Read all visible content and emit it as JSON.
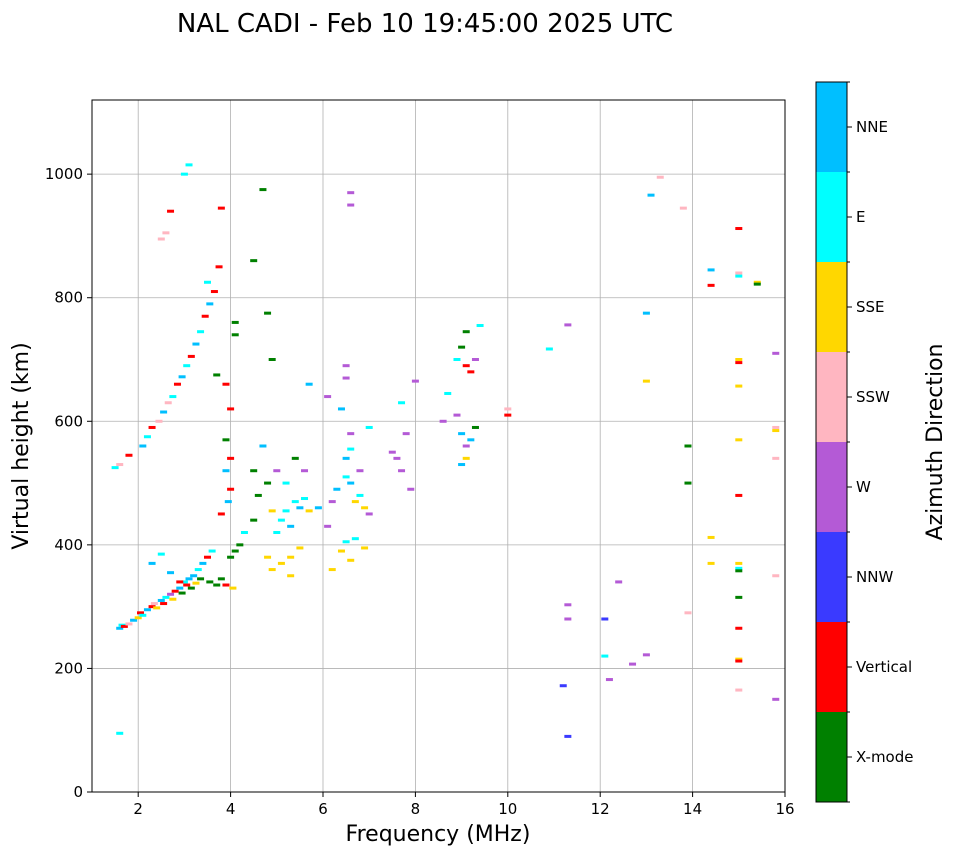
{
  "chart_data": {
    "type": "scatter",
    "title": "NAL CADI - Feb 10 19:45:00 2025 UTC",
    "xlabel": "Frequency (MHz)",
    "ylabel": "Virtual height (km)",
    "xlim": [
      1,
      16
    ],
    "ylim": [
      0,
      1120
    ],
    "xticks": [
      2,
      4,
      6,
      8,
      10,
      12,
      14,
      16
    ],
    "yticks": [
      0,
      200,
      400,
      600,
      800,
      1000
    ],
    "grid": true,
    "colorbar": {
      "title": "Azimuth Direction",
      "categories": [
        {
          "name": "X-mode",
          "color": "#008000"
        },
        {
          "name": "Vertical",
          "color": "#ff0000"
        },
        {
          "name": "NNW",
          "color": "#3a3aff"
        },
        {
          "name": "W",
          "color": "#b45ad6"
        },
        {
          "name": "SSW",
          "color": "#ffb6c1"
        },
        {
          "name": "SSE",
          "color": "#ffd700"
        },
        {
          "name": "E",
          "color": "#00ffff"
        },
        {
          "name": "NNE",
          "color": "#00bfff"
        }
      ]
    },
    "points": [
      [
        1.6,
        265,
        "NNE"
      ],
      [
        1.65,
        270,
        "E"
      ],
      [
        1.7,
        268,
        "Vertical"
      ],
      [
        1.8,
        272,
        "SSW"
      ],
      [
        1.9,
        278,
        "NNE"
      ],
      [
        2.0,
        282,
        "SSE"
      ],
      [
        2.05,
        290,
        "Vertical"
      ],
      [
        2.1,
        286,
        "E"
      ],
      [
        2.2,
        295,
        "NNE"
      ],
      [
        2.3,
        300,
        "Vertical"
      ],
      [
        2.35,
        305,
        "SSW"
      ],
      [
        2.4,
        298,
        "SSE"
      ],
      [
        2.5,
        310,
        "NNE"
      ],
      [
        2.55,
        305,
        "Vertical"
      ],
      [
        2.6,
        315,
        "E"
      ],
      [
        2.7,
        320,
        "W"
      ],
      [
        2.75,
        312,
        "SSE"
      ],
      [
        2.8,
        325,
        "Vertical"
      ],
      [
        2.9,
        330,
        "NNE"
      ],
      [
        2.95,
        322,
        "X-mode"
      ],
      [
        3.0,
        340,
        "E"
      ],
      [
        3.05,
        335,
        "Vertical"
      ],
      [
        3.1,
        345,
        "NNE"
      ],
      [
        3.15,
        330,
        "X-mode"
      ],
      [
        3.2,
        350,
        "NNE"
      ],
      [
        3.25,
        338,
        "SSE"
      ],
      [
        3.3,
        360,
        "E"
      ],
      [
        3.35,
        345,
        "X-mode"
      ],
      [
        3.4,
        370,
        "NNE"
      ],
      [
        3.5,
        380,
        "Vertical"
      ],
      [
        3.55,
        340,
        "X-mode"
      ],
      [
        3.6,
        390,
        "E"
      ],
      [
        3.7,
        335,
        "X-mode"
      ],
      [
        3.8,
        345,
        "X-mode"
      ],
      [
        3.9,
        335,
        "Vertical"
      ],
      [
        4.0,
        380,
        "X-mode"
      ],
      [
        4.05,
        330,
        "SSE"
      ],
      [
        4.1,
        390,
        "X-mode"
      ],
      [
        2.3,
        370,
        "NNE"
      ],
      [
        2.5,
        385,
        "E"
      ],
      [
        2.7,
        355,
        "NNE"
      ],
      [
        2.9,
        340,
        "Vertical"
      ],
      [
        1.5,
        525,
        "E"
      ],
      [
        1.6,
        530,
        "SSW"
      ],
      [
        1.8,
        545,
        "Vertical"
      ],
      [
        2.1,
        560,
        "NNE"
      ],
      [
        2.2,
        575,
        "E"
      ],
      [
        2.3,
        590,
        "Vertical"
      ],
      [
        2.45,
        600,
        "SSW"
      ],
      [
        2.55,
        615,
        "NNE"
      ],
      [
        2.65,
        630,
        "SSW"
      ],
      [
        2.75,
        640,
        "E"
      ],
      [
        2.85,
        660,
        "Vertical"
      ],
      [
        2.95,
        672,
        "NNE"
      ],
      [
        3.05,
        690,
        "E"
      ],
      [
        3.15,
        705,
        "Vertical"
      ],
      [
        3.25,
        725,
        "NNE"
      ],
      [
        3.35,
        745,
        "E"
      ],
      [
        3.45,
        770,
        "Vertical"
      ],
      [
        3.55,
        790,
        "NNE"
      ],
      [
        3.65,
        810,
        "Vertical"
      ],
      [
        3.5,
        825,
        "E"
      ],
      [
        2.7,
        940,
        "Vertical"
      ],
      [
        2.5,
        895,
        "SSW"
      ],
      [
        2.6,
        905,
        "SSW"
      ],
      [
        3.0,
        1000,
        "E"
      ],
      [
        3.1,
        1015,
        "E"
      ],
      [
        3.8,
        945,
        "Vertical"
      ],
      [
        3.75,
        850,
        "Vertical"
      ],
      [
        3.7,
        675,
        "X-mode"
      ],
      [
        3.9,
        660,
        "Vertical"
      ],
      [
        4.0,
        620,
        "Vertical"
      ],
      [
        4.1,
        740,
        "X-mode"
      ],
      [
        4.1,
        760,
        "X-mode"
      ],
      [
        4.5,
        860,
        "X-mode"
      ],
      [
        4.7,
        975,
        "X-mode"
      ],
      [
        4.8,
        775,
        "X-mode"
      ],
      [
        4.9,
        700,
        "X-mode"
      ],
      [
        3.9,
        570,
        "X-mode"
      ],
      [
        4.0,
        540,
        "Vertical"
      ],
      [
        3.9,
        520,
        "NNE"
      ],
      [
        4.0,
        490,
        "Vertical"
      ],
      [
        3.95,
        470,
        "NNE"
      ],
      [
        3.8,
        450,
        "Vertical"
      ],
      [
        4.2,
        400,
        "X-mode"
      ],
      [
        4.3,
        420,
        "E"
      ],
      [
        4.5,
        440,
        "X-mode"
      ],
      [
        4.5,
        520,
        "X-mode"
      ],
      [
        4.6,
        480,
        "X-mode"
      ],
      [
        4.7,
        560,
        "NNE"
      ],
      [
        4.8,
        500,
        "X-mode"
      ],
      [
        4.9,
        455,
        "SSE"
      ],
      [
        4.8,
        380,
        "SSE"
      ],
      [
        4.9,
        360,
        "SSE"
      ],
      [
        5.0,
        420,
        "E"
      ],
      [
        5.1,
        440,
        "E"
      ],
      [
        5.2,
        455,
        "E"
      ],
      [
        5.3,
        430,
        "NNE"
      ],
      [
        5.4,
        470,
        "E"
      ],
      [
        5.5,
        460,
        "NNE"
      ],
      [
        5.6,
        475,
        "E"
      ],
      [
        5.7,
        455,
        "SSE"
      ],
      [
        5.1,
        370,
        "SSE"
      ],
      [
        5.3,
        380,
        "SSE"
      ],
      [
        5.5,
        395,
        "SSE"
      ],
      [
        5.3,
        350,
        "SSE"
      ],
      [
        5.0,
        520,
        "W"
      ],
      [
        5.2,
        500,
        "E"
      ],
      [
        5.4,
        540,
        "X-mode"
      ],
      [
        5.6,
        520,
        "W"
      ],
      [
        5.9,
        460,
        "NNE"
      ],
      [
        6.1,
        430,
        "W"
      ],
      [
        6.2,
        470,
        "W"
      ],
      [
        6.3,
        490,
        "NNE"
      ],
      [
        6.5,
        510,
        "E"
      ],
      [
        6.6,
        500,
        "NNE"
      ],
      [
        6.7,
        470,
        "SSE"
      ],
      [
        6.8,
        480,
        "E"
      ],
      [
        6.9,
        460,
        "SSE"
      ],
      [
        7.0,
        450,
        "W"
      ],
      [
        6.2,
        360,
        "SSE"
      ],
      [
        6.4,
        390,
        "SSE"
      ],
      [
        6.5,
        405,
        "E"
      ],
      [
        6.6,
        375,
        "SSE"
      ],
      [
        6.9,
        395,
        "SSE"
      ],
      [
        6.7,
        410,
        "E"
      ],
      [
        6.5,
        540,
        "NNE"
      ],
      [
        6.6,
        555,
        "E"
      ],
      [
        6.8,
        520,
        "W"
      ],
      [
        7.0,
        590,
        "E"
      ],
      [
        6.6,
        580,
        "W"
      ],
      [
        6.4,
        620,
        "NNE"
      ],
      [
        6.5,
        670,
        "W"
      ],
      [
        6.5,
        690,
        "W"
      ],
      [
        6.6,
        950,
        "W"
      ],
      [
        6.6,
        970,
        "W"
      ],
      [
        6.1,
        640,
        "W"
      ],
      [
        5.7,
        660,
        "NNE"
      ],
      [
        7.5,
        550,
        "W"
      ],
      [
        7.6,
        540,
        "W"
      ],
      [
        7.8,
        580,
        "W"
      ],
      [
        7.7,
        520,
        "W"
      ],
      [
        7.9,
        490,
        "W"
      ],
      [
        8.0,
        665,
        "W"
      ],
      [
        7.7,
        630,
        "E"
      ],
      [
        8.6,
        600,
        "W"
      ],
      [
        8.7,
        645,
        "E"
      ],
      [
        8.9,
        610,
        "W"
      ],
      [
        9.0,
        580,
        "NNE"
      ],
      [
        8.9,
        700,
        "E"
      ],
      [
        9.0,
        720,
        "X-mode"
      ],
      [
        9.1,
        745,
        "X-mode"
      ],
      [
        9.1,
        690,
        "Vertical"
      ],
      [
        9.2,
        680,
        "Vertical"
      ],
      [
        9.3,
        700,
        "W"
      ],
      [
        9.1,
        560,
        "W"
      ],
      [
        9.2,
        570,
        "NNE"
      ],
      [
        9.3,
        590,
        "X-mode"
      ],
      [
        9.0,
        530,
        "NNE"
      ],
      [
        9.1,
        540,
        "SSE"
      ],
      [
        9.4,
        755,
        "E"
      ],
      [
        10.0,
        610,
        "Vertical"
      ],
      [
        10.0,
        620,
        "SSW"
      ],
      [
        10.9,
        717,
        "E"
      ],
      [
        11.3,
        756,
        "W"
      ],
      [
        11.3,
        303,
        "W"
      ],
      [
        11.3,
        280,
        "W"
      ],
      [
        11.2,
        172,
        "NNW"
      ],
      [
        11.3,
        90,
        "NNW"
      ],
      [
        12.1,
        280,
        "NNW"
      ],
      [
        12.1,
        220,
        "E"
      ],
      [
        12.2,
        182,
        "W"
      ],
      [
        12.4,
        340,
        "W"
      ],
      [
        12.7,
        207,
        "W"
      ],
      [
        13.0,
        222,
        "W"
      ],
      [
        13.0,
        775,
        "NNE"
      ],
      [
        13.0,
        665,
        "SSE"
      ],
      [
        13.1,
        966,
        "NNE"
      ],
      [
        13.3,
        995,
        "SSW"
      ],
      [
        13.8,
        945,
        "SSW"
      ],
      [
        13.9,
        560,
        "X-mode"
      ],
      [
        13.9,
        500,
        "X-mode"
      ],
      [
        13.9,
        290,
        "SSW"
      ],
      [
        14.4,
        845,
        "NNE"
      ],
      [
        14.4,
        820,
        "Vertical"
      ],
      [
        14.4,
        412,
        "SSE"
      ],
      [
        14.4,
        370,
        "SSE"
      ],
      [
        15.0,
        912,
        "Vertical"
      ],
      [
        15.0,
        840,
        "SSW"
      ],
      [
        15.0,
        835,
        "E"
      ],
      [
        15.0,
        700,
        "SSE"
      ],
      [
        15.0,
        695,
        "Vertical"
      ],
      [
        15.0,
        657,
        "SSE"
      ],
      [
        15.0,
        570,
        "SSE"
      ],
      [
        15.0,
        480,
        "Vertical"
      ],
      [
        15.0,
        370,
        "SSE"
      ],
      [
        15.0,
        362,
        "E"
      ],
      [
        15.0,
        358,
        "X-mode"
      ],
      [
        15.0,
        315,
        "X-mode"
      ],
      [
        15.0,
        265,
        "Vertical"
      ],
      [
        15.0,
        215,
        "SSE"
      ],
      [
        15.0,
        212,
        "Vertical"
      ],
      [
        15.0,
        165,
        "SSW"
      ],
      [
        15.4,
        825,
        "SSE"
      ],
      [
        15.4,
        822,
        "X-mode"
      ],
      [
        15.8,
        710,
        "W"
      ],
      [
        15.8,
        590,
        "SSW"
      ],
      [
        15.8,
        585,
        "SSE"
      ],
      [
        15.8,
        540,
        "SSW"
      ],
      [
        15.8,
        350,
        "SSW"
      ],
      [
        15.8,
        150,
        "W"
      ],
      [
        1.6,
        95,
        "E"
      ]
    ]
  }
}
